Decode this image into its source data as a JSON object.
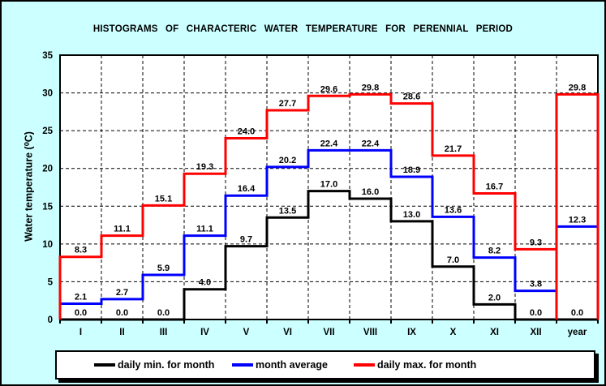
{
  "window": {
    "background_color": "#ccffff",
    "border_color": "#000000"
  },
  "chart_data": {
    "type": "bar",
    "subtype": "step-histogram",
    "title": "HISTOGRAMS OF CHARACTERIC WATER TEMPERATURE FOR PERENNIAL PERIOD",
    "xlabel": "",
    "ylabel": "Water temperature (⁰C)",
    "categories": [
      "I",
      "II",
      "III",
      "IV",
      "V",
      "VI",
      "VII",
      "VIII",
      "IX",
      "X",
      "XI",
      "XII",
      "year"
    ],
    "yticks": [
      0,
      5,
      10,
      15,
      20,
      25,
      30,
      35
    ],
    "ylim": [
      0,
      35
    ],
    "grid": "dashed",
    "legend_position": "bottom",
    "plot_background": "#ffffff",
    "grid_color": "#000000",
    "series": [
      {
        "name": "daily min. for month",
        "color": "#000000",
        "values": [
          0.0,
          0.0,
          0.0,
          4.0,
          9.7,
          13.5,
          17.0,
          16.0,
          13.0,
          7.0,
          2.0,
          0.0,
          0.0
        ]
      },
      {
        "name": "month average",
        "color": "#0000ff",
        "values": [
          2.1,
          2.7,
          5.9,
          11.1,
          16.4,
          20.2,
          22.4,
          22.4,
          18.9,
          13.6,
          8.2,
          3.8,
          12.3
        ]
      },
      {
        "name": "daily max. for month",
        "color": "#ff0000",
        "values": [
          8.3,
          11.1,
          15.1,
          19.3,
          24.0,
          27.7,
          29.6,
          29.8,
          28.6,
          21.7,
          16.7,
          9.3,
          29.8
        ]
      }
    ]
  },
  "legend": {
    "items": [
      {
        "label": "daily min. for month",
        "color": "#000000"
      },
      {
        "label": "month average",
        "color": "#0000ff"
      },
      {
        "label": "daily max. for month",
        "color": "#ff0000"
      }
    ]
  }
}
